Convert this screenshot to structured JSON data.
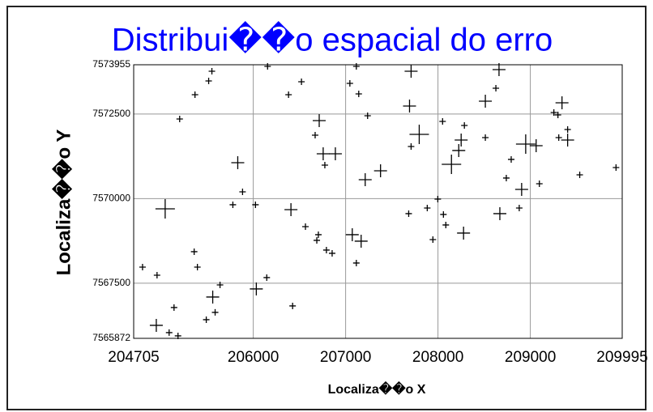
{
  "chart_data": {
    "type": "scatter",
    "title": "Distribui��o espacial do erro",
    "xlabel": "Localiza��o X",
    "ylabel": "Localiza��o Y",
    "xlim": [
      204705,
      209995
    ],
    "xticks": [
      204705,
      206000,
      207000,
      208000,
      209000,
      209995
    ],
    "ylim": [
      7565872,
      7573955
    ],
    "yticks": [
      7565872,
      7567500,
      7570000,
      7572500,
      7573955
    ],
    "grid": true,
    "color": "#000000",
    "title_color": "#0000ff",
    "x": [
      204801,
      204950,
      205089,
      205142,
      205185,
      205046,
      204958,
      205203,
      205369,
      205360,
      205395,
      205517,
      205552,
      205491,
      205587,
      205561,
      205640,
      205832,
      205884,
      205779,
      206024,
      206033,
      206146,
      206155,
      206382,
      206522,
      206408,
      206426,
      206565,
      206688,
      206705,
      206714,
      206670,
      206757,
      206775,
      206792,
      206854,
      206889,
      207046,
      207116,
      207142,
      207238,
      207212,
      207072,
      207168,
      207116,
      207378,
      207683,
      207709,
      207692,
      207709,
      207797,
      207884,
      207945,
      207998,
      208050,
      208059,
      208085,
      208146,
      208225,
      208251,
      208286,
      208277,
      208513,
      208513,
      208627,
      208661,
      208740,
      208793,
      208670,
      208880,
      208950,
      208906,
      209063,
      209098,
      209255,
      209299,
      209343,
      209308,
      209404,
      209404,
      209535,
      209928
    ],
    "y": [
      7567977,
      7566256,
      7566041,
      7566782,
      7565945,
      7569699,
      7567738,
      7572353,
      7573070,
      7568432,
      7567977,
      7573477,
      7573764,
      7566423,
      7566639,
      7567093,
      7567451,
      7571062,
      7570201,
      7569819,
      7569819,
      7567332,
      7567667,
      7573907,
      7573070,
      7573453,
      7569675,
      7566830,
      7569173,
      7568767,
      7568934,
      7572305,
      7571875,
      7571325,
      7570990,
      7568480,
      7568384,
      7571325,
      7573405,
      7573907,
      7573094,
      7572449,
      7570560,
      7568934,
      7568743,
      7568097,
      7570823,
      7569556,
      7573764,
      7572736,
      7571540,
      7571899,
      7569723,
      7568790,
      7569986,
      7572281,
      7569532,
      7569221,
      7571014,
      7571421,
      7571731,
      7572162,
      7568982,
      7572879,
      7571803,
      7573262,
      7573812,
      7570608,
      7571158,
      7569556,
      7569723,
      7571612,
      7570273,
      7571564,
      7570440,
      7572544,
      7572473,
      7572831,
      7571803,
      7571731,
      7572042,
      7570703,
      7570918
    ],
    "sizes": [
      1,
      2,
      1,
      1,
      1,
      3,
      1,
      1,
      1,
      1,
      1,
      1,
      1,
      1,
      1,
      2,
      1,
      2,
      1,
      1,
      1,
      2,
      1,
      1,
      1,
      1,
      2,
      1,
      1,
      1,
      1,
      2,
      1,
      2,
      1,
      1,
      1,
      2,
      1,
      1,
      1,
      1,
      2,
      2,
      2,
      1,
      2,
      1,
      2,
      2,
      1,
      3,
      1,
      1,
      1,
      1,
      1,
      1,
      3,
      2,
      2,
      1,
      2,
      2,
      1,
      1,
      2,
      1,
      1,
      2,
      1,
      3,
      2,
      2,
      1,
      1,
      1,
      2,
      1,
      2,
      1,
      1,
      1
    ]
  }
}
